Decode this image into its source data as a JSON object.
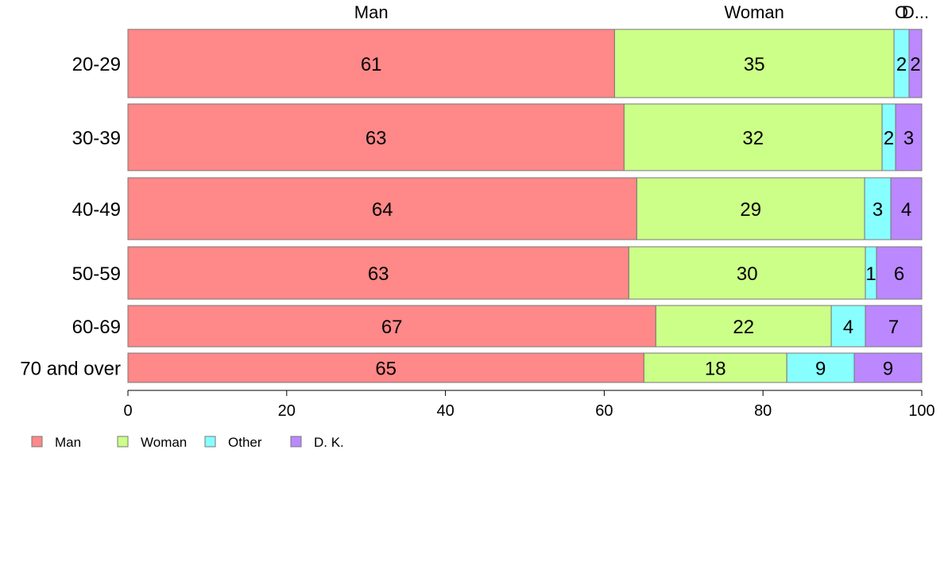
{
  "chart_data": {
    "type": "bar",
    "orientation": "horizontal",
    "stacked": true,
    "title": "",
    "xlabel": "",
    "ylabel": "",
    "xlim": [
      0,
      100
    ],
    "x_ticks": [
      "0",
      "20",
      "40",
      "60",
      "80",
      "100"
    ],
    "categories": [
      "20-29",
      "30-39",
      "40-49",
      "50-59",
      "60-69",
      "70 and over"
    ],
    "series": [
      {
        "name": "Man",
        "color": "#FF8888",
        "values": [
          61.3,
          62.5,
          64.1,
          63.1,
          66.5,
          65.0
        ],
        "labels": [
          "61",
          "63",
          "64",
          "63",
          "67",
          "65"
        ]
      },
      {
        "name": "Woman",
        "color": "#CCFF88",
        "values": [
          35.2,
          32.5,
          28.7,
          29.8,
          22.1,
          18.0
        ],
        "labels": [
          "35",
          "32",
          "29",
          "30",
          "22",
          "18"
        ]
      },
      {
        "name": "Other",
        "color": "#88FFFF",
        "values": [
          1.9,
          1.7,
          3.3,
          1.4,
          4.3,
          8.5
        ],
        "labels": [
          "2",
          "2",
          "3",
          "1",
          "4",
          "9"
        ]
      },
      {
        "name": "D. K.",
        "color": "#BB88FF",
        "values": [
          1.6,
          3.3,
          3.9,
          5.7,
          7.1,
          8.5
        ],
        "labels": [
          "2",
          "3",
          "4",
          "6",
          "7",
          "9"
        ]
      }
    ],
    "top_labels": [
      "Man",
      "Woman",
      "Other",
      "D. K."
    ],
    "top_labels_shown": [
      "Man",
      "Woman",
      "O",
      "D..."
    ],
    "legend": {
      "position": "bottom-left",
      "entries": [
        "Man",
        "Woman",
        "Other",
        "D. K."
      ]
    },
    "grid": false
  }
}
